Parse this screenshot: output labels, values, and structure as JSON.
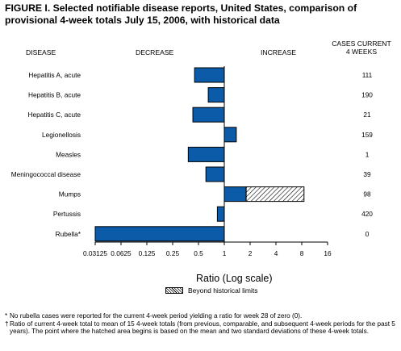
{
  "header": {
    "title": "FIGURE I. Selected notifiable disease reports, United States, comparison of provisional 4-week totals July 15, 2006, with historical data",
    "col_disease": "DISEASE",
    "col_decrease": "DECREASE",
    "col_increase": "INCREASE",
    "col_cases": "CASES CURRENT\n4 WEEKS"
  },
  "legend": {
    "hatched_label": "Beyond historical limits"
  },
  "footnotes": [
    {
      "mark": "*",
      "text": "No rubella cases were reported for the current 4-week period yielding a ratio for week 28 of zero (0)."
    },
    {
      "mark": "†",
      "text": "Ratio of current 4-week total to mean of 15 4-week totals (from previous, comparable, and subsequent 4-week periods for the past 5 years). The point where the hatched area begins is based on the mean and two standard deviations of these 4-week totals."
    }
  ],
  "colors": {
    "bar": "#0b5ba8",
    "hatch": "#000000"
  },
  "chart_data": {
    "type": "bar",
    "orientation": "horizontal",
    "xlabel": "Ratio (Log scale)",
    "x_scale": "log2",
    "xlim": [
      0.03125,
      16
    ],
    "x_ticks": [
      "0.03125",
      "0.0625",
      "0.125",
      "0.25",
      "0.5",
      "1",
      "2",
      "4",
      "8",
      "16"
    ],
    "categories": [
      "Hepatitis A, acute",
      "Hepatitis B, acute",
      "Hepatitis C, acute",
      "Legionellosis",
      "Measles",
      "Meningococcal disease",
      "Mumps",
      "Pertussis",
      "Rubella*"
    ],
    "values": [
      0.45,
      0.65,
      0.43,
      1.38,
      0.38,
      0.61,
      8.5,
      0.83,
      0
    ],
    "beyond_historical_limit_start": [
      null,
      null,
      null,
      null,
      null,
      null,
      1.8,
      null,
      null
    ],
    "cases_current_4_weeks": [
      "111",
      "190",
      "21",
      "159",
      "1",
      "39",
      "98",
      "420",
      "0"
    ],
    "grid": false,
    "legend_placement": "bottom-center"
  }
}
